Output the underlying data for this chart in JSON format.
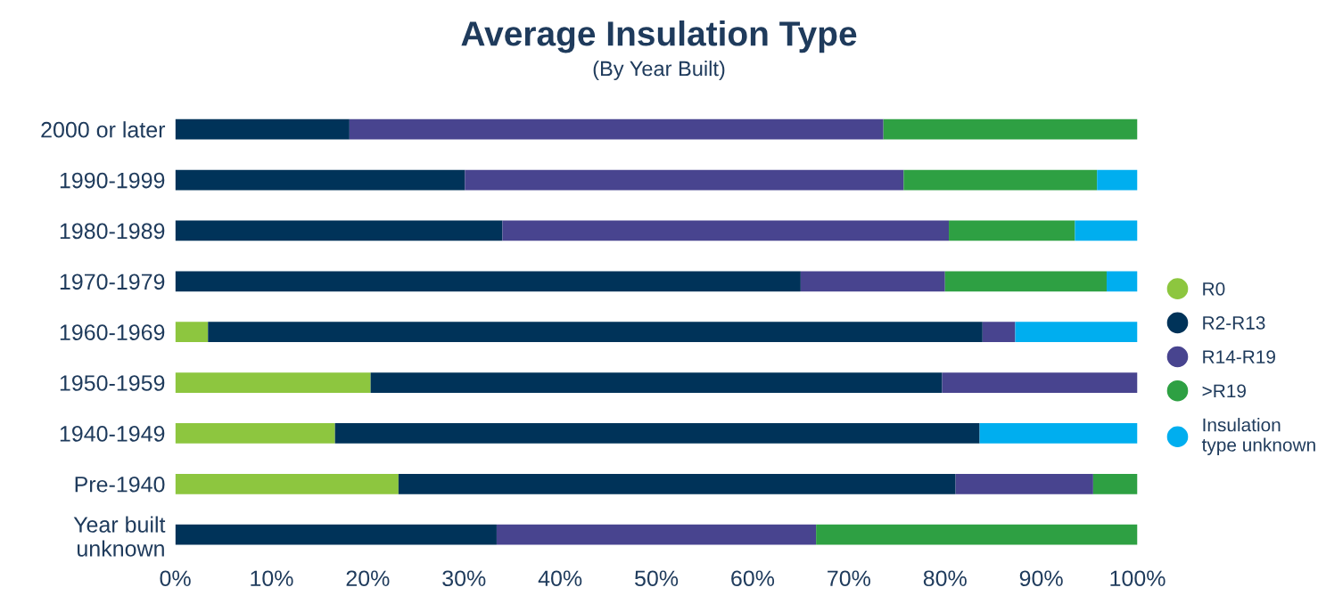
{
  "chart_data": {
    "type": "bar",
    "orientation": "horizontal",
    "stacked": true,
    "title": "Average Insulation Type",
    "subtitle": "(By Year Built)",
    "categories": [
      "2000 or later",
      "1990-1999",
      "1980-1989",
      "1970-1979",
      "1960-1969",
      "1950-1959",
      "1940-1949",
      "Pre-1940",
      "Year built\nunknown"
    ],
    "series": [
      {
        "name": "R0",
        "color": "#8dc63f",
        "values": [
          null,
          null,
          null,
          null,
          3.4,
          20.3,
          16.6,
          23.2,
          null
        ]
      },
      {
        "name": "R2-R13",
        "color": "#003359",
        "values": [
          18.1,
          30.1,
          34.0,
          65.0,
          80.5,
          59.4,
          67.0,
          57.9,
          33.4
        ]
      },
      {
        "name": "R14-R19",
        "color": "#48448f",
        "values": [
          55.5,
          45.6,
          46.4,
          15.0,
          3.4,
          20.3,
          null,
          14.3,
          33.2
        ]
      },
      {
        "name": ">R19",
        "color": "#2ea043",
        "values": [
          26.4,
          20.1,
          13.1,
          16.8,
          null,
          null,
          null,
          4.6,
          33.4
        ]
      },
      {
        "name": "Insulation\ntype unknown",
        "color": "#00aeef",
        "values": [
          null,
          4.2,
          6.5,
          3.2,
          12.7,
          null,
          16.4,
          null,
          null
        ]
      }
    ],
    "xlim": [
      0,
      100
    ],
    "xticks": [
      {
        "value": 0,
        "label": "0%"
      },
      {
        "value": 10,
        "label": "10%"
      },
      {
        "value": 20,
        "label": "20%"
      },
      {
        "value": 30,
        "label": "30%"
      },
      {
        "value": 40,
        "label": "40%"
      },
      {
        "value": 50,
        "label": "50%"
      },
      {
        "value": 60,
        "label": "60%"
      },
      {
        "value": 70,
        "label": "70%"
      },
      {
        "value": 80,
        "label": "80%"
      },
      {
        "value": 90,
        "label": "90%"
      },
      {
        "value": 100,
        "label": "100%"
      }
    ],
    "legend": "right",
    "grid": false,
    "marker": "circle"
  }
}
